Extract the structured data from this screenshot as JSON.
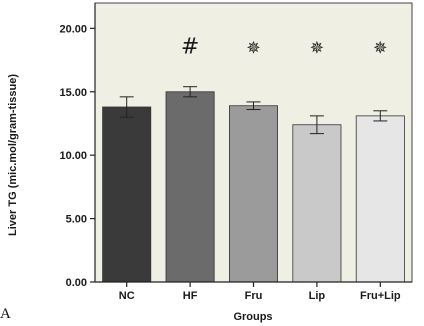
{
  "panel_label": "A",
  "chart_data": {
    "type": "bar",
    "categories": [
      "NC",
      "HF",
      "Fru",
      "Lip",
      "Fru+Lip"
    ],
    "values": [
      13.8,
      15.0,
      13.9,
      12.4,
      13.1
    ],
    "errors": [
      0.8,
      0.4,
      0.3,
      0.7,
      0.4
    ],
    "markers": [
      "",
      "#",
      "✵",
      "✵",
      "✵"
    ],
    "bar_colors": [
      "#3a3a3a",
      "#6b6b6b",
      "#9b9b9b",
      "#c9c9c9",
      "#e6e6e6"
    ],
    "ylim": [
      0,
      22
    ],
    "yticks": [
      0,
      5,
      10,
      15,
      20
    ],
    "ytick_labels": [
      "0.00",
      "5.00",
      "10.00",
      "15.00",
      "20.00"
    ],
    "xlabel": "Groups",
    "ylabel": "Liver TG (mic.mol/gram-tissue)",
    "grid": false,
    "plot_background": "#f0efe3"
  }
}
